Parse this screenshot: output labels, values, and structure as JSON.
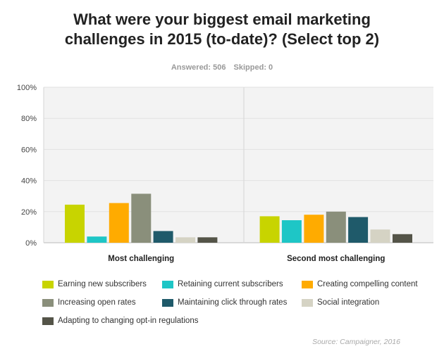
{
  "header": {
    "title_line1": "What were your biggest email marketing",
    "title_line2": "challenges in 2015 (to-date)? (Select top 2)",
    "answered": "Answered: 506",
    "skipped": "Skipped: 0"
  },
  "source": "Source: Campaigner, 2016",
  "chart_data": {
    "type": "bar",
    "categories": [
      "Most challenging",
      "Second most challenging"
    ],
    "ylim": [
      0,
      100
    ],
    "yticks": [
      "0%",
      "20%",
      "40%",
      "60%",
      "80%",
      "100%"
    ],
    "grid": true,
    "legend_position": "bottom",
    "series": [
      {
        "name": "Earning new subscribers",
        "color": "#c8d400",
        "values": [
          24.5,
          17
        ]
      },
      {
        "name": "Retaining current subscribers",
        "color": "#1ec6c6",
        "values": [
          4,
          14.5
        ]
      },
      {
        "name": "Creating compelling content",
        "color": "#ffab00",
        "values": [
          25.5,
          18
        ]
      },
      {
        "name": "Increasing open rates",
        "color": "#8a8f7b",
        "values": [
          31.5,
          20
        ]
      },
      {
        "name": "Maintaining click through rates",
        "color": "#1f5a6a",
        "values": [
          7.5,
          16.5
        ]
      },
      {
        "name": "Social integration",
        "color": "#d5d3c4",
        "values": [
          3.5,
          8.5
        ]
      },
      {
        "name": "Adapting to changing opt-in regulations",
        "color": "#545448",
        "values": [
          3.5,
          5.5
        ]
      }
    ]
  }
}
